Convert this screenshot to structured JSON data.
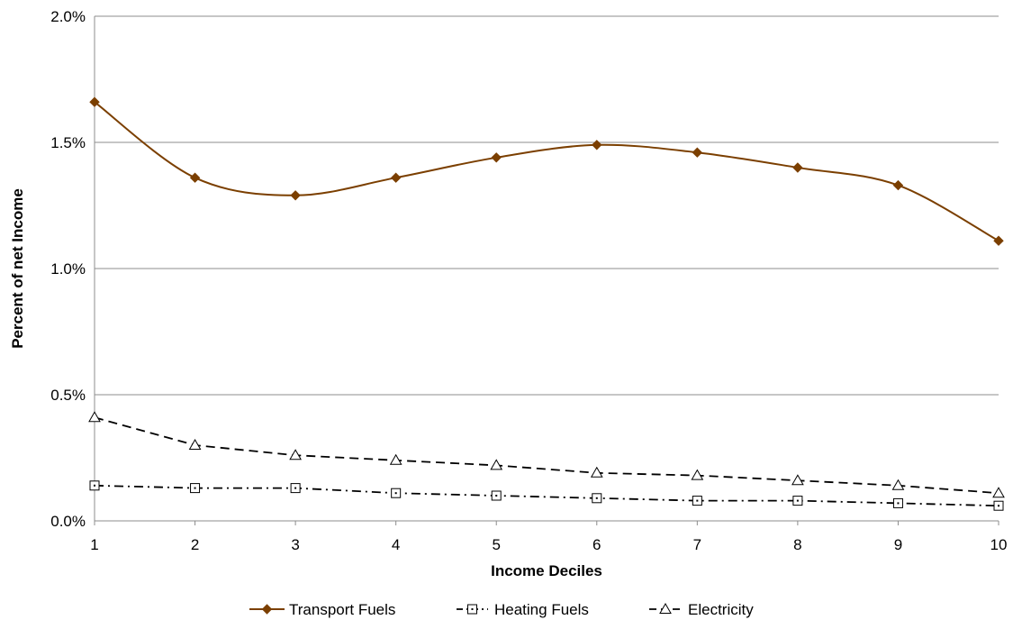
{
  "chart_data": {
    "type": "line",
    "xlabel": "Income Deciles",
    "ylabel": "Percent of net Income",
    "x": [
      1,
      2,
      3,
      4,
      5,
      6,
      7,
      8,
      9,
      10
    ],
    "x_ticks": [
      "1",
      "2",
      "3",
      "4",
      "5",
      "6",
      "7",
      "8",
      "9",
      "10"
    ],
    "ylim": [
      0.0,
      2.0
    ],
    "y_ticks": [
      0.0,
      0.5,
      1.0,
      1.5,
      2.0
    ],
    "y_tick_labels": [
      "0.0%",
      "0.5%",
      "1.0%",
      "1.5%",
      "2.0%"
    ],
    "grid": true,
    "legend_position": "bottom",
    "series": [
      {
        "name": "Transport Fuels",
        "values": [
          1.66,
          1.36,
          1.29,
          1.36,
          1.44,
          1.49,
          1.46,
          1.4,
          1.33,
          1.11
        ],
        "color": "#7B3F00",
        "line_style": "solid",
        "smooth": true,
        "marker": "diamond"
      },
      {
        "name": "Heating Fuels",
        "values": [
          0.14,
          0.13,
          0.13,
          0.11,
          0.1,
          0.09,
          0.08,
          0.08,
          0.07,
          0.06
        ],
        "color": "#000000",
        "line_style": "dash-dot",
        "smooth": false,
        "marker": "square"
      },
      {
        "name": "Electricity",
        "values": [
          0.41,
          0.3,
          0.26,
          0.24,
          0.22,
          0.19,
          0.18,
          0.16,
          0.14,
          0.11
        ],
        "color": "#000000",
        "line_style": "dash",
        "smooth": false,
        "marker": "triangle"
      }
    ]
  }
}
